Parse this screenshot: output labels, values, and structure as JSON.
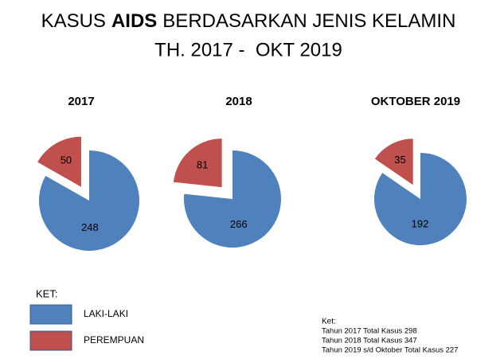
{
  "title": {
    "pre": "KASUS",
    "bold": "AIDS",
    "post": "BERDASARKAN JENIS KELAMIN",
    "line2": "TH. 2017 -  OKT 2019"
  },
  "chart_data": [
    {
      "type": "pie",
      "title": "2017",
      "categories": [
        "LAKI-LAKI",
        "PEREMPUAN"
      ],
      "values": [
        248,
        50
      ],
      "colors": [
        "#4f81bd",
        "#c0504d"
      ]
    },
    {
      "type": "pie",
      "title": "2018",
      "categories": [
        "LAKI-LAKI",
        "PEREMPUAN"
      ],
      "values": [
        266,
        81
      ],
      "colors": [
        "#4f81bd",
        "#c0504d"
      ]
    },
    {
      "type": "pie",
      "title": "OKTOBER 2019",
      "categories": [
        "LAKI-LAKI",
        "PEREMPUAN"
      ],
      "values": [
        192,
        35
      ],
      "colors": [
        "#4f81bd",
        "#c0504d"
      ]
    }
  ],
  "legend_title": "KET:",
  "notes": {
    "title": "Ket:",
    "lines": [
      "Tahun 2017 Total Kasus 298",
      "Tahun 2018 Total Kasus 347",
      "Tahun 2019 s/d Oktober Total Kasus 227"
    ]
  }
}
